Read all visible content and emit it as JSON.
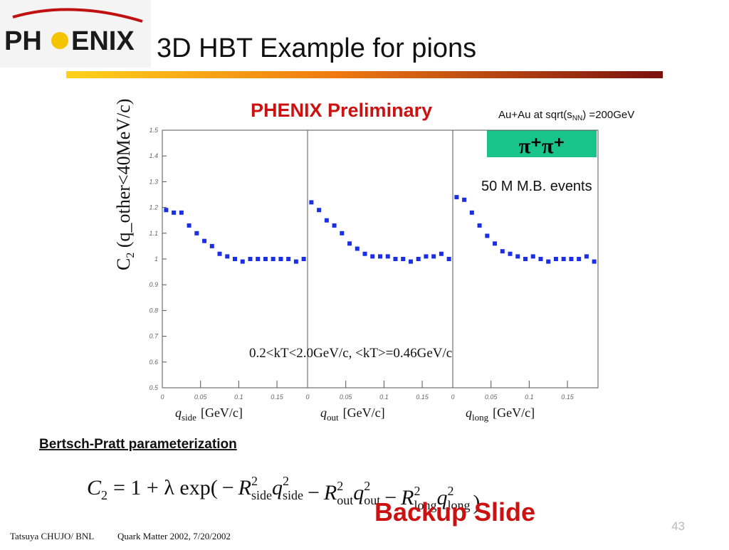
{
  "slide": {
    "logo": [
      "PH",
      "ENIX"
    ],
    "title": "3D HBT Example for pions",
    "preliminary": "PHENIX Preliminary",
    "system": [
      "Au+Au at sqrt(s",
      "NN",
      ") =200GeV"
    ],
    "particles": "π⁺π⁺",
    "events": "50 M M.B. events",
    "kt_note": "0.2<kT<2.0GeV/c, <kT>=0.46GeV/c",
    "ylabel": [
      "C",
      "2",
      " (q_other<40MeV/c)"
    ],
    "param_heading": "Bertsch-Pratt parameterization",
    "formula": {
      "lhs": "C",
      "lhs_sub": "2",
      "rhs_start": "= 1 + λ exp(",
      "terms": [
        {
          "sign": "−",
          "R": "R",
          "q": "q",
          "sub": "side",
          "sup": "2"
        },
        {
          "sign": "−",
          "R": "R",
          "q": "q",
          "sub": "out",
          "sup": "2"
        },
        {
          "sign": "−",
          "R": "R",
          "q": "q",
          "sub": "long",
          "sup": "2"
        }
      ],
      "close": ")"
    },
    "backup": "Backup Slide",
    "page": "43",
    "author": "Tatsuya CHUJO/ BNL",
    "conference": "Quark Matter 2002,   7/20/2002"
  },
  "chart_data": [
    {
      "type": "scatter",
      "xlabel": {
        "symbol": "q",
        "sub": "side",
        "unit": "[GeV/c]"
      },
      "x": [
        0.005,
        0.015,
        0.025,
        0.035,
        0.045,
        0.055,
        0.065,
        0.075,
        0.085,
        0.095,
        0.105,
        0.115,
        0.125,
        0.135,
        0.145,
        0.155,
        0.165,
        0.175,
        0.185
      ],
      "values": [
        1.19,
        1.18,
        1.18,
        1.13,
        1.1,
        1.07,
        1.05,
        1.02,
        1.01,
        1.0,
        0.99,
        1.0,
        1.0,
        1.0,
        1.0,
        1.0,
        1.0,
        0.99,
        1.0
      ],
      "color": "#1a2ee6",
      "xlim": [
        0,
        0.19
      ],
      "ylim": [
        0.5,
        1.5
      ],
      "xticks": [
        0,
        0.05,
        0.1,
        0.15
      ],
      "yticks": [
        0.5,
        0.6,
        0.7,
        0.8,
        0.9,
        1,
        1.1,
        1.2,
        1.3,
        1.4,
        1.5
      ]
    },
    {
      "type": "scatter",
      "xlabel": {
        "symbol": "q",
        "sub": "out",
        "unit": "[GeV/c]"
      },
      "x": [
        0.005,
        0.015,
        0.025,
        0.035,
        0.045,
        0.055,
        0.065,
        0.075,
        0.085,
        0.095,
        0.105,
        0.115,
        0.125,
        0.135,
        0.145,
        0.155,
        0.165,
        0.175,
        0.185
      ],
      "values": [
        1.22,
        1.19,
        1.15,
        1.13,
        1.1,
        1.06,
        1.04,
        1.02,
        1.01,
        1.01,
        1.01,
        1.0,
        1.0,
        0.99,
        1.0,
        1.01,
        1.01,
        1.02,
        1.0
      ],
      "color": "#1a2ee6",
      "xlim": [
        0,
        0.19
      ],
      "ylim": [
        0.5,
        1.5
      ],
      "xticks": [
        0,
        0.05,
        0.1,
        0.15
      ]
    },
    {
      "type": "scatter",
      "xlabel": {
        "symbol": "q",
        "sub": "long",
        "unit": "[GeV/c]"
      },
      "x": [
        0.005,
        0.015,
        0.025,
        0.035,
        0.045,
        0.055,
        0.065,
        0.075,
        0.085,
        0.095,
        0.105,
        0.115,
        0.125,
        0.135,
        0.145,
        0.155,
        0.165,
        0.175,
        0.185
      ],
      "values": [
        1.24,
        1.23,
        1.18,
        1.13,
        1.09,
        1.06,
        1.03,
        1.02,
        1.01,
        1.0,
        1.01,
        1.0,
        0.99,
        1.0,
        1.0,
        1.0,
        1.0,
        1.01,
        0.99
      ],
      "color": "#1a2ee6",
      "xlim": [
        0,
        0.19
      ],
      "ylim": [
        0.5,
        1.5
      ],
      "xticks": [
        0,
        0.05,
        0.1,
        0.15
      ]
    }
  ]
}
